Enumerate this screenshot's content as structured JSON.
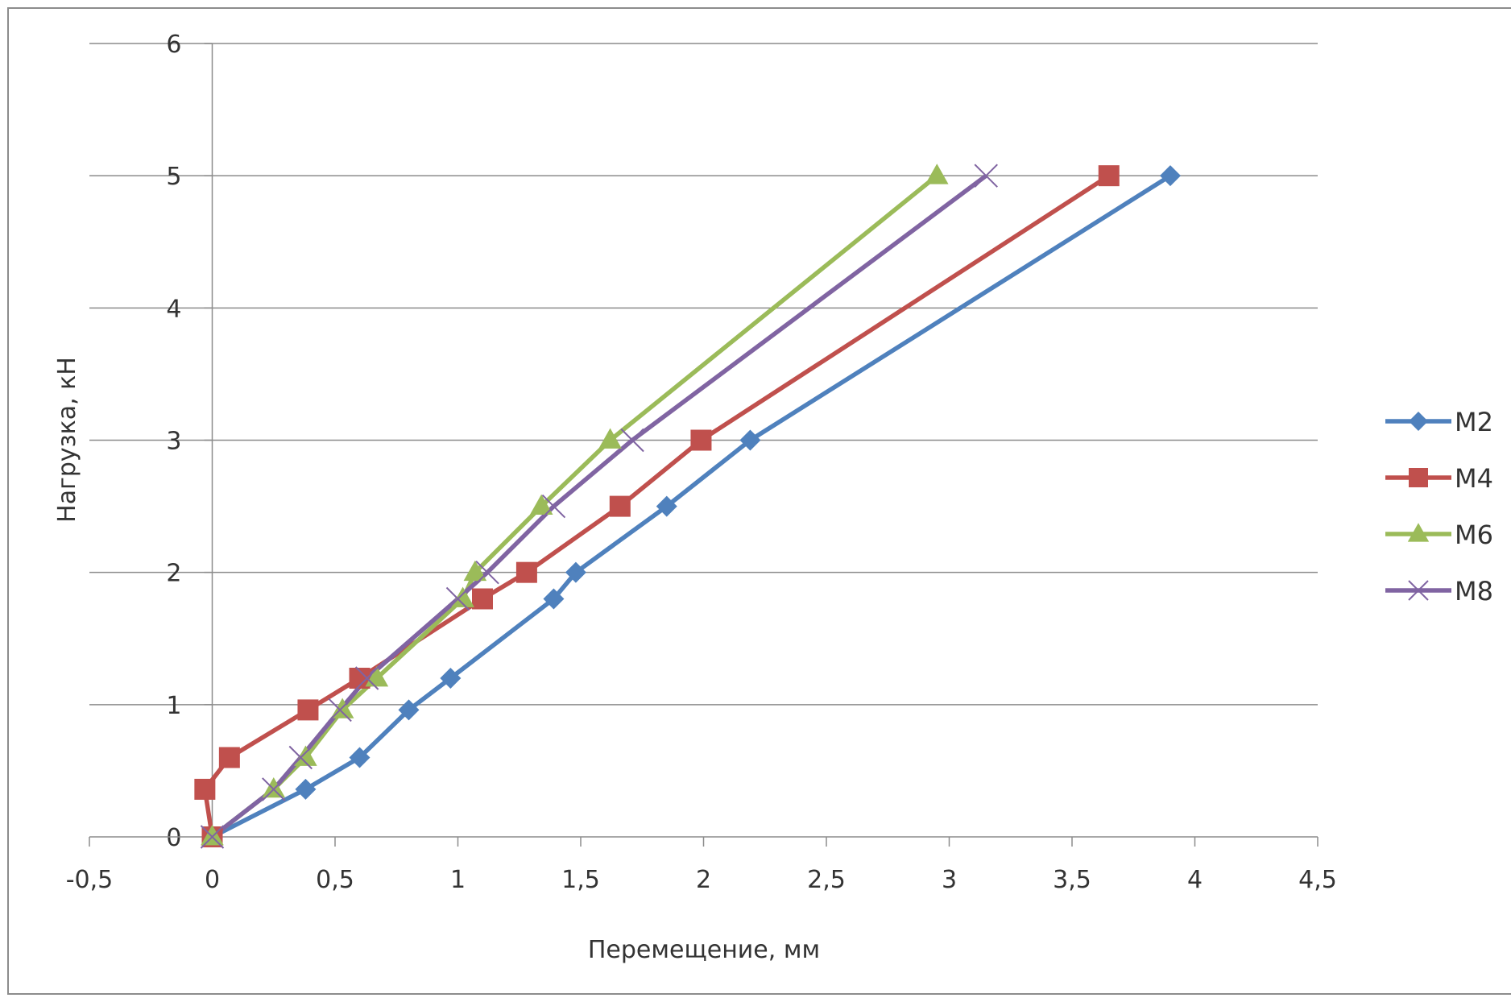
{
  "chart_data": {
    "type": "line",
    "title": "",
    "xlabel": "Перемещение, мм",
    "ylabel": "Нагрузка, кН",
    "xlim": [
      -0.5,
      4.5
    ],
    "ylim": [
      0,
      6
    ],
    "x_ticks": [
      -0.5,
      0,
      0.5,
      1,
      1.5,
      2,
      2.5,
      3,
      3.5,
      4,
      4.5
    ],
    "x_tick_labels": [
      "-0,5",
      "0",
      "0,5",
      "1",
      "1,5",
      "2",
      "2,5",
      "3",
      "3,5",
      "4",
      "4,5"
    ],
    "y_ticks": [
      0,
      1,
      2,
      3,
      4,
      5,
      6
    ],
    "y_tick_labels": [
      "0",
      "1",
      "2",
      "3",
      "4",
      "5",
      "6"
    ],
    "grid": "horizontal",
    "legend_position": "right",
    "series": [
      {
        "name": "M2",
        "color": "#4f81bd",
        "marker": "diamond",
        "points": [
          [
            0,
            0
          ],
          [
            0.38,
            0.36
          ],
          [
            0.6,
            0.6
          ],
          [
            0.8,
            0.96
          ],
          [
            0.97,
            1.2
          ],
          [
            1.39,
            1.8
          ],
          [
            1.48,
            2.0
          ],
          [
            1.85,
            2.5
          ],
          [
            2.19,
            3.0
          ],
          [
            3.9,
            5.0
          ]
        ]
      },
      {
        "name": "M4",
        "color": "#c0504d",
        "marker": "square",
        "points": [
          [
            0,
            0
          ],
          [
            -0.03,
            0.36
          ],
          [
            0.07,
            0.6
          ],
          [
            0.39,
            0.96
          ],
          [
            0.6,
            1.2
          ],
          [
            1.1,
            1.8
          ],
          [
            1.28,
            2.0
          ],
          [
            1.66,
            2.5
          ],
          [
            1.99,
            3.0
          ],
          [
            3.65,
            5.0
          ]
        ]
      },
      {
        "name": "M6",
        "color": "#9bbb59",
        "marker": "triangle",
        "points": [
          [
            0,
            0
          ],
          [
            0.25,
            0.36
          ],
          [
            0.38,
            0.6
          ],
          [
            0.53,
            0.96
          ],
          [
            0.67,
            1.2
          ],
          [
            1.02,
            1.8
          ],
          [
            1.07,
            2.0
          ],
          [
            1.34,
            2.5
          ],
          [
            1.62,
            3.0
          ],
          [
            2.95,
            5.0
          ]
        ]
      },
      {
        "name": "M8",
        "color": "#8064a2",
        "marker": "x",
        "points": [
          [
            0,
            0
          ],
          [
            0.25,
            0.36
          ],
          [
            0.36,
            0.6
          ],
          [
            0.52,
            0.96
          ],
          [
            0.63,
            1.2
          ],
          [
            1.0,
            1.8
          ],
          [
            1.12,
            2.0
          ],
          [
            1.39,
            2.5
          ],
          [
            1.71,
            3.0
          ],
          [
            3.15,
            5.0
          ]
        ]
      }
    ]
  }
}
